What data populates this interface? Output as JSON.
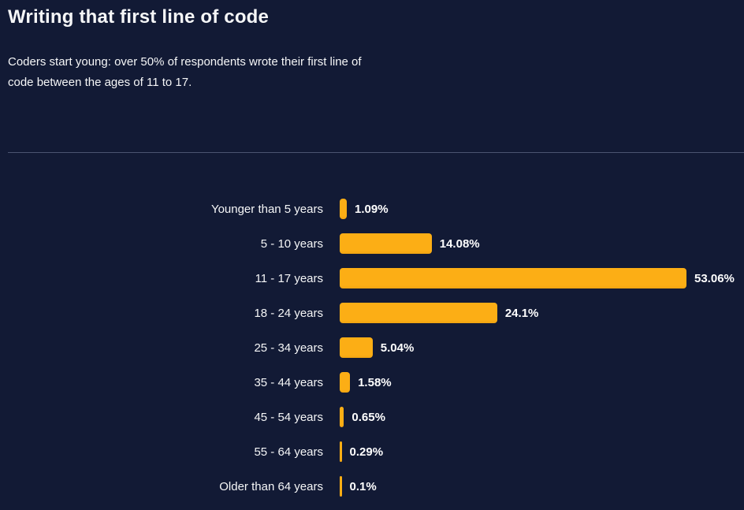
{
  "theme": {
    "background": "#121a35",
    "bar_color": "#fcae15",
    "text_color": "#f5f6f7",
    "value_color": "#ffffff",
    "divider_color": "#4b5470"
  },
  "header": {
    "title": "Writing that first line of code",
    "subtitle": "Coders start young: over 50% of respondents wrote their first line of code between the ages of 11 to 17."
  },
  "chart_data": {
    "type": "bar",
    "orientation": "horizontal",
    "title": "Writing that first line of code",
    "xlabel": "",
    "ylabel": "",
    "xlim": [
      0,
      53.06
    ],
    "grid": false,
    "legend": false,
    "bar_color": "#fcae15",
    "categories": [
      "Younger than 5 years",
      "5 - 10 years",
      "11 - 17 years",
      "18 - 24 years",
      "25 - 34 years",
      "35 - 44 years",
      "45 - 54 years",
      "55 - 64 years",
      "Older than 64 years"
    ],
    "values": [
      1.09,
      14.08,
      53.06,
      24.1,
      5.04,
      1.58,
      0.65,
      0.29,
      0.1
    ],
    "value_labels": [
      "1.09%",
      "14.08%",
      "53.06%",
      "24.1%",
      "5.04%",
      "1.58%",
      "0.65%",
      "0.29%",
      "0.1%"
    ]
  }
}
